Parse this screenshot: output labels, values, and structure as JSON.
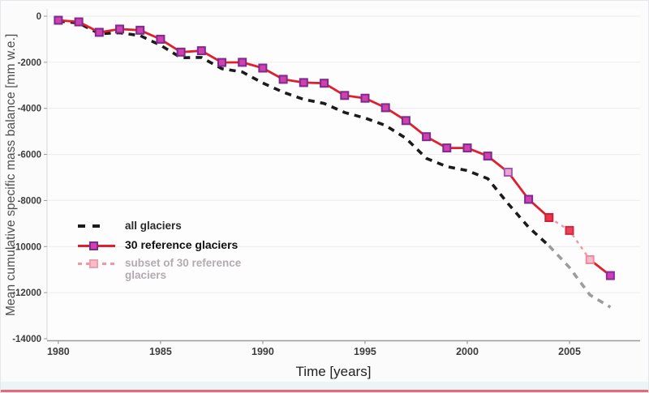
{
  "figure": {
    "xlabel": "Time [years]",
    "ylabel": "Mean cumulative specific mass balance [mm w.e.]"
  },
  "legend": {
    "items": [
      {
        "label": "all glaciers",
        "swatch": "dashed-black-line"
      },
      {
        "label": "30 reference glaciers",
        "swatch": "solid-red-line-magenta-square"
      },
      {
        "label": "subset of 30 reference glaciers",
        "swatch": "dashed-pink-line-pink-square"
      }
    ]
  },
  "colors": {
    "all_glaciers_line": "#1b1b1b",
    "all_glaciers_tail": "#9c9c9c",
    "reference_line": "#df1f2d",
    "reference_marker_fill": "#d23fae",
    "reference_marker_stroke": "#7c2b8e",
    "subset_line": "#f295a5",
    "subset_marker_fill": "#f8bcc8",
    "gridline": "#ececec",
    "axis": "#9a9a9a",
    "tick_text": "#3d3d3d"
  },
  "chart_data": {
    "type": "line",
    "title": "",
    "xlabel": "Time [years]",
    "ylabel": "Mean cumulative specific mass balance [mm w.e.]",
    "xlim": [
      1979.45,
      2008.45
    ],
    "ylim": [
      -14000,
      0
    ],
    "x_ticks": [
      1980,
      1985,
      1990,
      1995,
      2000,
      2005
    ],
    "y_ticks": [
      0,
      -2000,
      -4000,
      -6000,
      -8000,
      -10000,
      -12000,
      -14000
    ],
    "grid": "horizontal",
    "legend_position": "inside-left-middle",
    "x": [
      1980,
      1981,
      1982,
      1983,
      1984,
      1985,
      1986,
      1987,
      1988,
      1989,
      1990,
      1991,
      1992,
      1993,
      1994,
      1995,
      1996,
      1997,
      1998,
      1999,
      2000,
      2001,
      2002,
      2003,
      2004,
      2005,
      2006,
      2007
    ],
    "series": [
      {
        "name": "all glaciers",
        "line_style": "dashed",
        "dash": "8 7",
        "width": 3.6,
        "color": "#1b1b1b",
        "segments": [
          {
            "from": 1980,
            "to": 2004,
            "color": "#1b1b1b"
          },
          {
            "from": 2004,
            "to": 2007,
            "color": "#9c9c9c"
          }
        ],
        "values": [
          -210,
          -300,
          -760,
          -720,
          -840,
          -1260,
          -1800,
          -1790,
          -2280,
          -2420,
          -2900,
          -3300,
          -3610,
          -3790,
          -4180,
          -4420,
          -4740,
          -5300,
          -6170,
          -6530,
          -6700,
          -7050,
          -8140,
          -9160,
          -9970,
          -10910,
          -12100,
          -12630
        ]
      },
      {
        "name": "30 reference glaciers",
        "line_style": "solid",
        "width": 2.8,
        "color": "#df1f2d",
        "segments": [
          {
            "from": 1980,
            "to": 2004
          },
          {
            "from": 2004,
            "to": 2006,
            "dash": "4 5",
            "color": "#f295a5",
            "width": 2.4
          },
          {
            "from": 2006,
            "to": 2007
          }
        ],
        "marker": {
          "shape": "square",
          "size": 9,
          "fill": "#d23fae",
          "stroke": "#7c2b8e",
          "stroke_width": 2
        },
        "marker_overrides": {
          "2002": {
            "fill": "#eba5d5",
            "stroke": "#a857b0"
          },
          "2004": {
            "fill": "#e8354a",
            "stroke": "#cf1f36"
          },
          "2005": {
            "fill": "#ea4256",
            "stroke": "#d32742"
          },
          "2006": {
            "fill": "#f8bcc8",
            "stroke": "#ef8ba0"
          },
          "2007": {
            "fill": "#c93fb8",
            "stroke": "#8a2b9e"
          }
        },
        "values": [
          -175,
          -245,
          -700,
          -560,
          -610,
          -1000,
          -1560,
          -1500,
          -2010,
          -2000,
          -2250,
          -2740,
          -2880,
          -2910,
          -3440,
          -3560,
          -3970,
          -4530,
          -5230,
          -5720,
          -5720,
          -6070,
          -6770,
          -7950,
          -8740,
          -9300,
          -10570,
          -11260
        ]
      },
      {
        "name": "subset of 30 reference glaciers",
        "line_style": "dashed",
        "color": "#f295a5",
        "skip_draw": true,
        "note_rendered_as": "dashed segment of reference series 2004-2006",
        "x": [
          2004,
          2005,
          2006
        ],
        "values": [
          -8740,
          -9300,
          -10570
        ]
      }
    ]
  }
}
